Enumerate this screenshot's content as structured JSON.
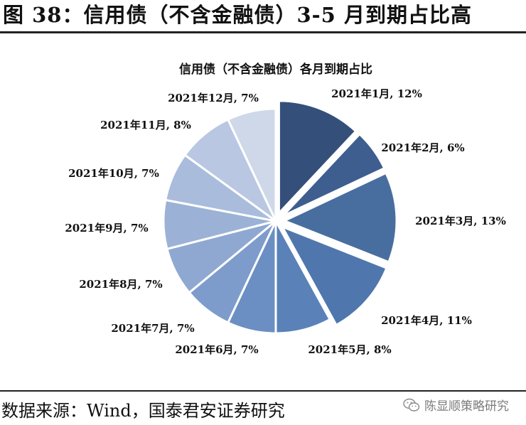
{
  "figure": {
    "title": "图 38：信用债（不含金融债）3-5 月到期占比高"
  },
  "chart_data": {
    "type": "pie",
    "title": "信用债（不含金融债）各月到期占比",
    "unit": "%",
    "categories": [
      "2021年1月",
      "2021年2月",
      "2021年3月",
      "2021年4月",
      "2021年5月",
      "2021年6月",
      "2021年7月",
      "2021年8月",
      "2021年9月",
      "2021年10月",
      "2021年11月",
      "2021年12月"
    ],
    "values": [
      12,
      6,
      13,
      11,
      8,
      7,
      7,
      7,
      7,
      7,
      8,
      7
    ],
    "labels": [
      "2021年1月, 12%",
      "2021年2月, 6%",
      "2021年3月, 13%",
      "2021年4月, 11%",
      "2021年5月, 8%",
      "2021年6月, 7%",
      "2021年7月, 7%",
      "2021年8月, 7%",
      "2021年9月, 7%",
      "2021年10月, 7%",
      "2021年11月, 8%",
      "2021年12月, 7%"
    ],
    "colors": [
      "#34507a",
      "#3d5e8f",
      "#486ea0",
      "#4f77ad",
      "#5a82b8",
      "#6b8fc2",
      "#7d9ccb",
      "#8ea8d1",
      "#9bb2d6",
      "#a9bcdc",
      "#b9c7e2",
      "#cfd8e8"
    ],
    "exploded": [
      "2021年1月",
      "2021年2月",
      "2021年3月",
      "2021年4月"
    ],
    "legend": "none"
  },
  "footer": {
    "source": "数据来源：Wind，国泰君安证券研究",
    "watermark": "陈显顺策略研究",
    "watermark_icon": "wechat-icon"
  }
}
